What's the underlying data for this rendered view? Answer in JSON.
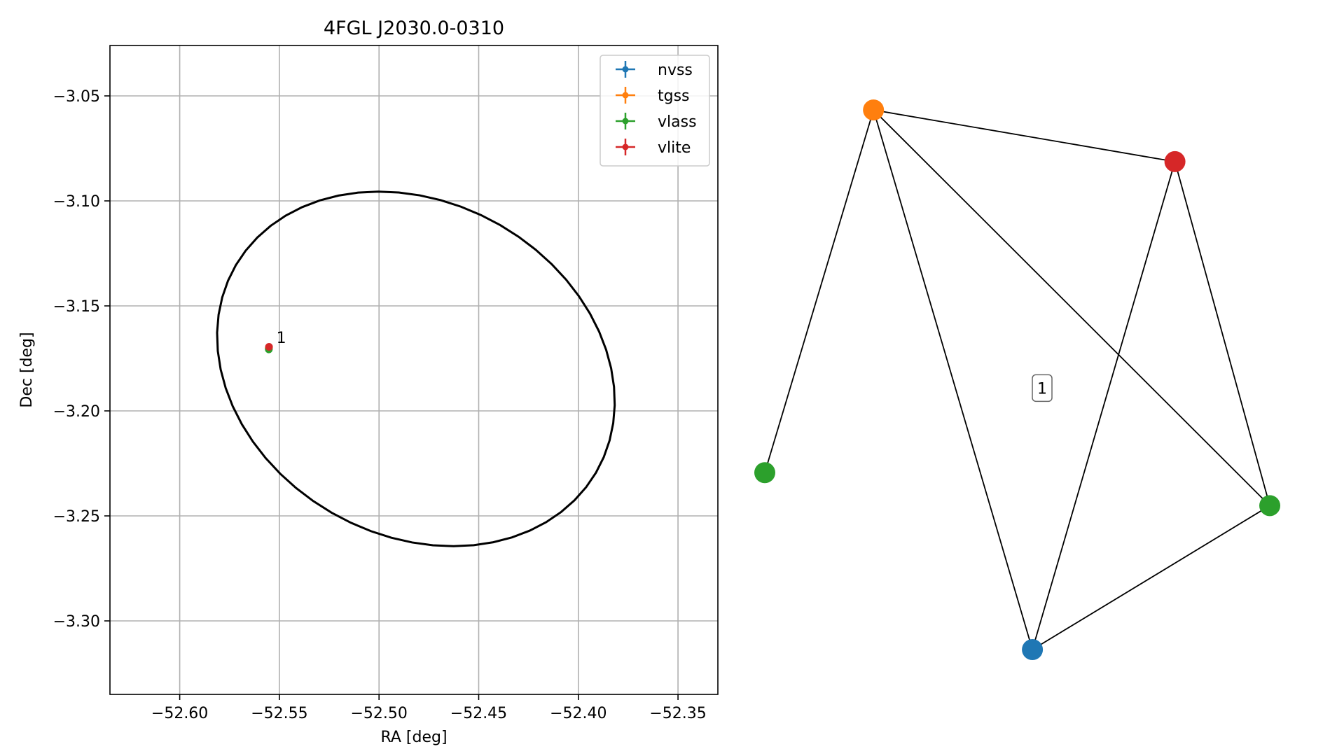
{
  "chart_data": [
    {
      "type": "scatter",
      "title": "4FGL J2030.0-0310",
      "xlabel": "RA [deg]",
      "ylabel": "Dec [deg]",
      "xlim": [
        -52.635,
        -52.33
      ],
      "ylim": [
        -3.335,
        -3.026
      ],
      "x_ticks": [
        -52.6,
        -52.55,
        -52.5,
        -52.45,
        -52.4,
        -52.35
      ],
      "x_tick_labels": [
        "−52.60",
        "−52.55",
        "−52.50",
        "−52.45",
        "−52.40",
        "−52.35"
      ],
      "y_ticks": [
        -3.05,
        -3.1,
        -3.15,
        -3.2,
        -3.25,
        -3.3
      ],
      "y_tick_labels": [
        "−3.05",
        "−3.10",
        "−3.15",
        "−3.20",
        "−3.25",
        "−3.30"
      ],
      "grid": true,
      "legend_position": "top-right",
      "series": [
        {
          "name": "nvss",
          "color": "#1f77b4",
          "points": [
            {
              "x": -52.5553,
              "y": -3.1703
            }
          ]
        },
        {
          "name": "tgss",
          "color": "#ff7f0e",
          "points": [
            {
              "x": -52.5553,
              "y": -3.17
            }
          ]
        },
        {
          "name": "vlass",
          "color": "#2ca02c",
          "points": [
            {
              "x": -52.5553,
              "y": -3.1707
            }
          ]
        },
        {
          "name": "vlite",
          "color": "#d62728",
          "points": [
            {
              "x": -52.5552,
              "y": -3.1695
            }
          ]
        }
      ],
      "ellipse": {
        "color": "#000000",
        "center_x": -52.4815,
        "center_y": -3.18,
        "x_radius": 0.1032,
        "y_radius": 0.0802,
        "angle_deg": -24
      },
      "annotations": [
        {
          "text": "1",
          "x": -52.5515,
          "y": -3.165
        }
      ]
    },
    {
      "type": "network",
      "edge_color": "#000000",
      "nodes": [
        {
          "id": "tgss",
          "color": "#ff7f0e",
          "x": 0.212,
          "y": 0.982
        },
        {
          "id": "vlite",
          "color": "#d62728",
          "x": 0.8,
          "y": 0.888
        },
        {
          "id": "vlass-a",
          "color": "#2ca02c",
          "x": 0.0,
          "y": 0.322
        },
        {
          "id": "vlass-b",
          "color": "#2ca02c",
          "x": 0.985,
          "y": 0.262
        },
        {
          "id": "nvss",
          "color": "#1f77b4",
          "x": 0.522,
          "y": 0.0
        }
      ],
      "edges": [
        [
          "tgss",
          "vlite"
        ],
        [
          "tgss",
          "vlass-a"
        ],
        [
          "tgss",
          "vlass-b"
        ],
        [
          "tgss",
          "nvss"
        ],
        [
          "vlite",
          "vlass-b"
        ],
        [
          "vlite",
          "nvss"
        ],
        [
          "vlass-b",
          "nvss"
        ]
      ],
      "label": {
        "text": "1",
        "x": 0.541,
        "y": 0.476
      }
    }
  ]
}
